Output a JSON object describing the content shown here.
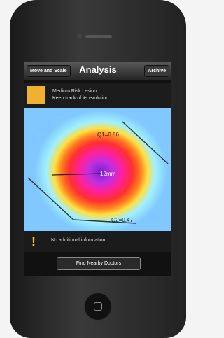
{
  "nav": {
    "left_button": "Move and Scale",
    "title": "Analysis",
    "right_button": "Archive"
  },
  "risk": {
    "title": "Medium Risk Lesion",
    "subtitle": "Keep track of its evolution"
  },
  "annotations": {
    "q1": "Q1=0.86",
    "measurement": "12mm",
    "q2": "Q2=0.47"
  },
  "info": {
    "message": "No additional information"
  },
  "action": {
    "label": "Find Nearby Doctors"
  }
}
